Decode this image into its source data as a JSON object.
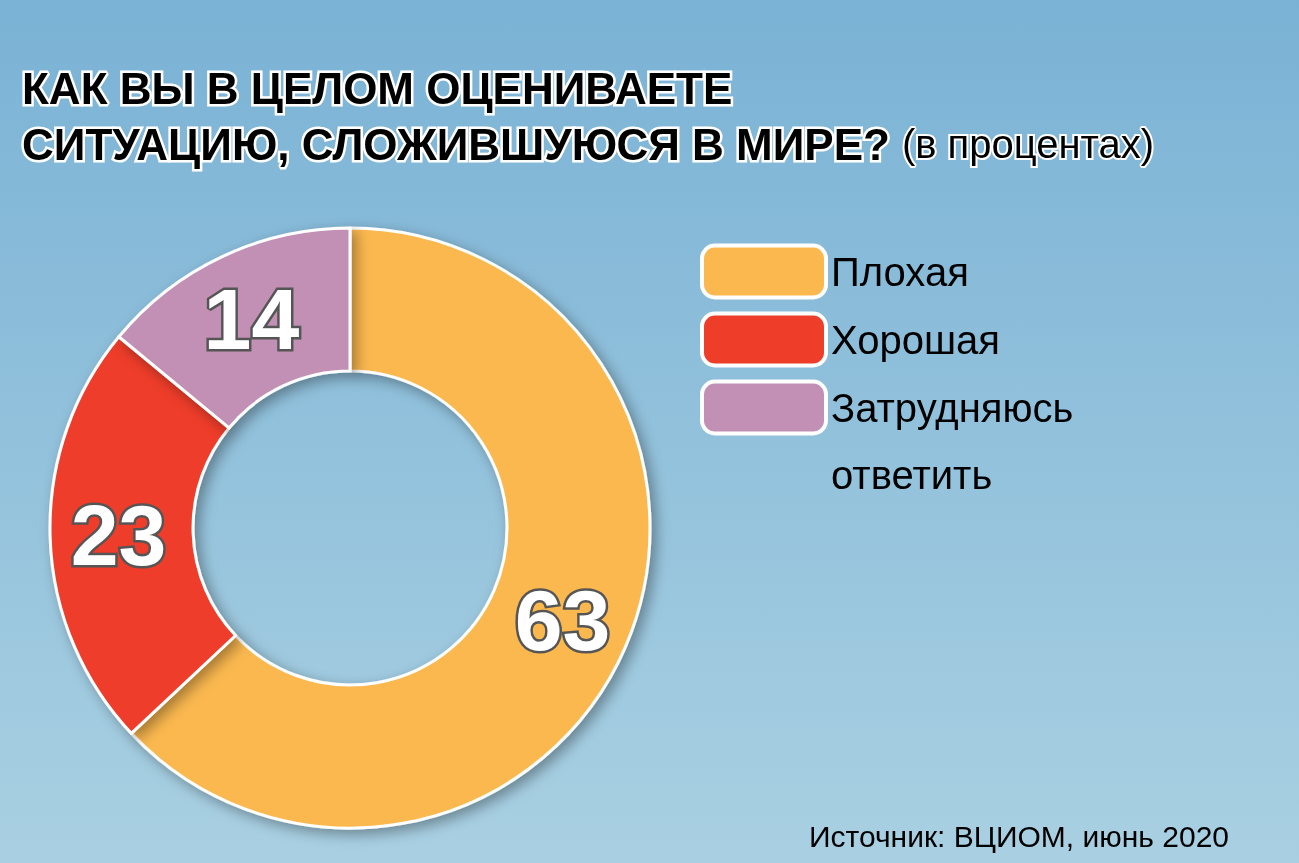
{
  "chart_data": {
    "type": "donut",
    "title": "КАК ВЫ В ЦЕЛОМ ОЦЕНИВАЕТЕ СИТУАЦИЮ, СЛОЖИВШУЮСЯ В МИРЕ?",
    "subtitle": "(в процентах)",
    "categories": [
      "Плохая",
      "Хорошая",
      "Затрудняюсь ответить"
    ],
    "values": [
      63,
      23,
      14
    ],
    "colors": [
      "#fbb84f",
      "#ee3d29",
      "#c290b4"
    ],
    "data_labels": true,
    "legend": "right",
    "annotations": [
      "Источник: ВЦИОМ, июнь 2020"
    ]
  }
}
